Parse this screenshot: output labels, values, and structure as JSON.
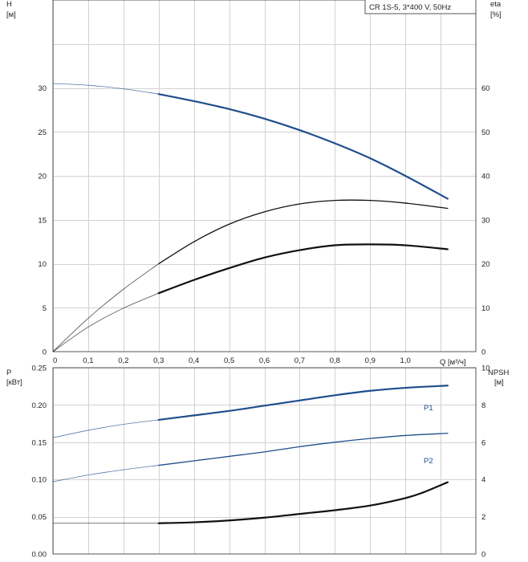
{
  "legend_label": "CR 1S-5, 3*400 V, 50Hz",
  "chart_data": [
    {
      "type": "line",
      "name": "head-efficiency",
      "xlabel": "Q [м³/ч]",
      "x_ticks": [
        "0",
        "0,1",
        "0,2",
        "0,3",
        "0,4",
        "0,5",
        "0,6",
        "0,7",
        "0,8",
        "0,9",
        "1,0"
      ],
      "xlim": [
        0,
        1.2
      ],
      "y_left": {
        "label": [
          "H",
          "[м]"
        ],
        "lim": [
          0,
          40
        ],
        "ticks": [
          "0",
          "5",
          "10",
          "15",
          "20",
          "25",
          "30"
        ]
      },
      "y_right": {
        "label": [
          "eta",
          "[%]"
        ],
        "lim": [
          0,
          80
        ],
        "ticks": [
          "0",
          "10",
          "20",
          "30",
          "40",
          "50",
          "60"
        ]
      },
      "series": [
        {
          "axis": "left",
          "color": "#1f4e8c",
          "weight": "bold",
          "x": [
            0,
            0.1,
            0.2,
            0.3,
            0.4,
            0.5,
            0.6,
            0.7,
            0.8,
            0.9,
            1.0,
            1.12
          ],
          "y": [
            30.5,
            30.3,
            29.9,
            29.3,
            28.5,
            27.6,
            26.5,
            25.2,
            23.7,
            22.0,
            20.0,
            17.4
          ],
          "thin_until": 0.3
        },
        {
          "axis": "left",
          "color": "#111111",
          "weight": "normal",
          "x": [
            0,
            0.1,
            0.2,
            0.3,
            0.4,
            0.5,
            0.6,
            0.7,
            0.8,
            0.9,
            1.0,
            1.12
          ],
          "y": [
            0,
            3.8,
            7.1,
            10.0,
            12.5,
            14.5,
            15.9,
            16.8,
            17.2,
            17.2,
            16.9,
            16.3
          ],
          "thin_until": 0.3
        }
      ],
      "eta_series": {
        "axis": "right",
        "color": "#111111",
        "weight": "bold",
        "x": [
          0,
          0.1,
          0.2,
          0.3,
          0.4,
          0.5,
          0.6,
          0.7,
          0.8,
          0.9,
          1.0,
          1.12
        ],
        "y": [
          0,
          5.6,
          9.9,
          13.3,
          16.3,
          19.0,
          21.4,
          23.1,
          24.2,
          24.4,
          24.2,
          23.3
        ],
        "thin_until": 0.3
      }
    },
    {
      "type": "line",
      "name": "power-npsh",
      "xlim": [
        0,
        1.2
      ],
      "y_left": {
        "label": [
          "P",
          "[кВт]"
        ],
        "lim": [
          0,
          0.25
        ],
        "ticks": [
          "0.00",
          "0.05",
          "0.10",
          "0.15",
          "0.20",
          "0.25"
        ]
      },
      "y_right": {
        "label": [
          "NPSH",
          "[м]"
        ],
        "lim": [
          0,
          10
        ],
        "ticks": [
          "0",
          "2",
          "4",
          "6",
          "8",
          "10"
        ]
      },
      "series": [
        {
          "name": "P1",
          "axis": "left",
          "color": "#1f4e8c",
          "weight": "bold",
          "x": [
            0,
            0.1,
            0.2,
            0.3,
            0.4,
            0.5,
            0.6,
            0.7,
            0.8,
            0.9,
            1.0,
            1.12
          ],
          "y": [
            0.156,
            0.166,
            0.174,
            0.18,
            0.186,
            0.192,
            0.199,
            0.206,
            0.213,
            0.219,
            0.223,
            0.226
          ],
          "thin_until": 0.3
        },
        {
          "name": "P2",
          "axis": "left",
          "color": "#1f4e8c",
          "weight": "normal",
          "x": [
            0,
            0.1,
            0.2,
            0.3,
            0.4,
            0.5,
            0.6,
            0.7,
            0.8,
            0.9,
            1.0,
            1.12
          ],
          "y": [
            0.097,
            0.106,
            0.113,
            0.119,
            0.125,
            0.131,
            0.137,
            0.144,
            0.15,
            0.155,
            0.159,
            0.162
          ],
          "thin_until": 0.3
        },
        {
          "axis": "right",
          "color": "#111111",
          "weight": "bold",
          "x": [
            0,
            0.1,
            0.2,
            0.3,
            0.4,
            0.5,
            0.6,
            0.7,
            0.8,
            0.9,
            1.0,
            1.05,
            1.12
          ],
          "y": [
            1.65,
            1.65,
            1.65,
            1.65,
            1.7,
            1.8,
            1.95,
            2.15,
            2.35,
            2.6,
            3.0,
            3.3,
            3.85
          ],
          "thin_until": 0.3
        }
      ]
    }
  ]
}
